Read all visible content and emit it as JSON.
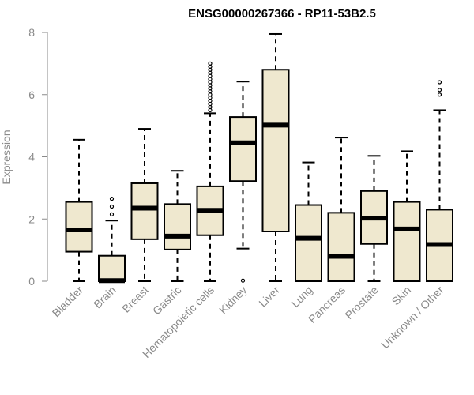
{
  "chart_data": {
    "type": "boxplot",
    "title": "ENSG00000267366 - RP11-53B2.5",
    "ylabel": "Expression",
    "xlabel": "",
    "ylim": [
      0,
      8
    ],
    "yticks": [
      0,
      2,
      4,
      6,
      8
    ],
    "box_fill": "#efe8cf",
    "categories": [
      "Bladder",
      "Brain",
      "Breast",
      "Gastric",
      "Hematopoietic cells",
      "Kidney",
      "Liver",
      "Lung",
      "Pancreas",
      "Prostate",
      "Skin",
      "Unknown / Other"
    ],
    "boxes": [
      {
        "category": "Bladder",
        "whisker_low": 0,
        "q1": 0.95,
        "median": 1.65,
        "q3": 2.55,
        "whisker_high": 4.55,
        "outliers": []
      },
      {
        "category": "Brain",
        "whisker_low": 0,
        "q1": 0,
        "median": 0.02,
        "q3": 0.82,
        "whisker_high": 1.95,
        "outliers": [
          2.15,
          2.4,
          2.65
        ]
      },
      {
        "category": "Breast",
        "whisker_low": 0,
        "q1": 1.35,
        "median": 2.35,
        "q3": 3.15,
        "whisker_high": 4.9,
        "outliers": []
      },
      {
        "category": "Gastric",
        "whisker_low": 0,
        "q1": 1.02,
        "median": 1.45,
        "q3": 2.48,
        "whisker_high": 3.55,
        "outliers": []
      },
      {
        "category": "Hematopoietic cells",
        "whisker_low": 0,
        "q1": 1.48,
        "median": 2.28,
        "q3": 3.05,
        "whisker_high": 5.4,
        "outliers": [
          5.5,
          5.6,
          5.7,
          5.8,
          5.9,
          6.0,
          6.1,
          6.2,
          6.3,
          6.4,
          6.5,
          6.6,
          6.7,
          6.8,
          6.9,
          7.0
        ]
      },
      {
        "category": "Kidney",
        "whisker_low": 1.05,
        "q1": 3.22,
        "median": 4.45,
        "q3": 5.28,
        "whisker_high": 6.42,
        "outliers": [
          0.02
        ]
      },
      {
        "category": "Liver",
        "whisker_low": 0,
        "q1": 1.6,
        "median": 5.02,
        "q3": 6.8,
        "whisker_high": 7.95,
        "outliers": []
      },
      {
        "category": "Lung",
        "whisker_low": 0,
        "q1": 0,
        "median": 1.38,
        "q3": 2.45,
        "whisker_high": 3.82,
        "outliers": []
      },
      {
        "category": "Pancreas",
        "whisker_low": 0,
        "q1": 0,
        "median": 0.8,
        "q3": 2.2,
        "whisker_high": 4.62,
        "outliers": []
      },
      {
        "category": "Prostate",
        "whisker_low": 0,
        "q1": 1.2,
        "median": 2.03,
        "q3": 2.9,
        "whisker_high": 4.03,
        "outliers": []
      },
      {
        "category": "Skin",
        "whisker_low": 0,
        "q1": 0,
        "median": 1.68,
        "q3": 2.55,
        "whisker_high": 4.18,
        "outliers": []
      },
      {
        "category": "Unknown / Other",
        "whisker_low": 0,
        "q1": 0,
        "median": 1.18,
        "q3": 2.3,
        "whisker_high": 5.5,
        "outliers": [
          6.0,
          6.15,
          6.4
        ]
      }
    ]
  }
}
